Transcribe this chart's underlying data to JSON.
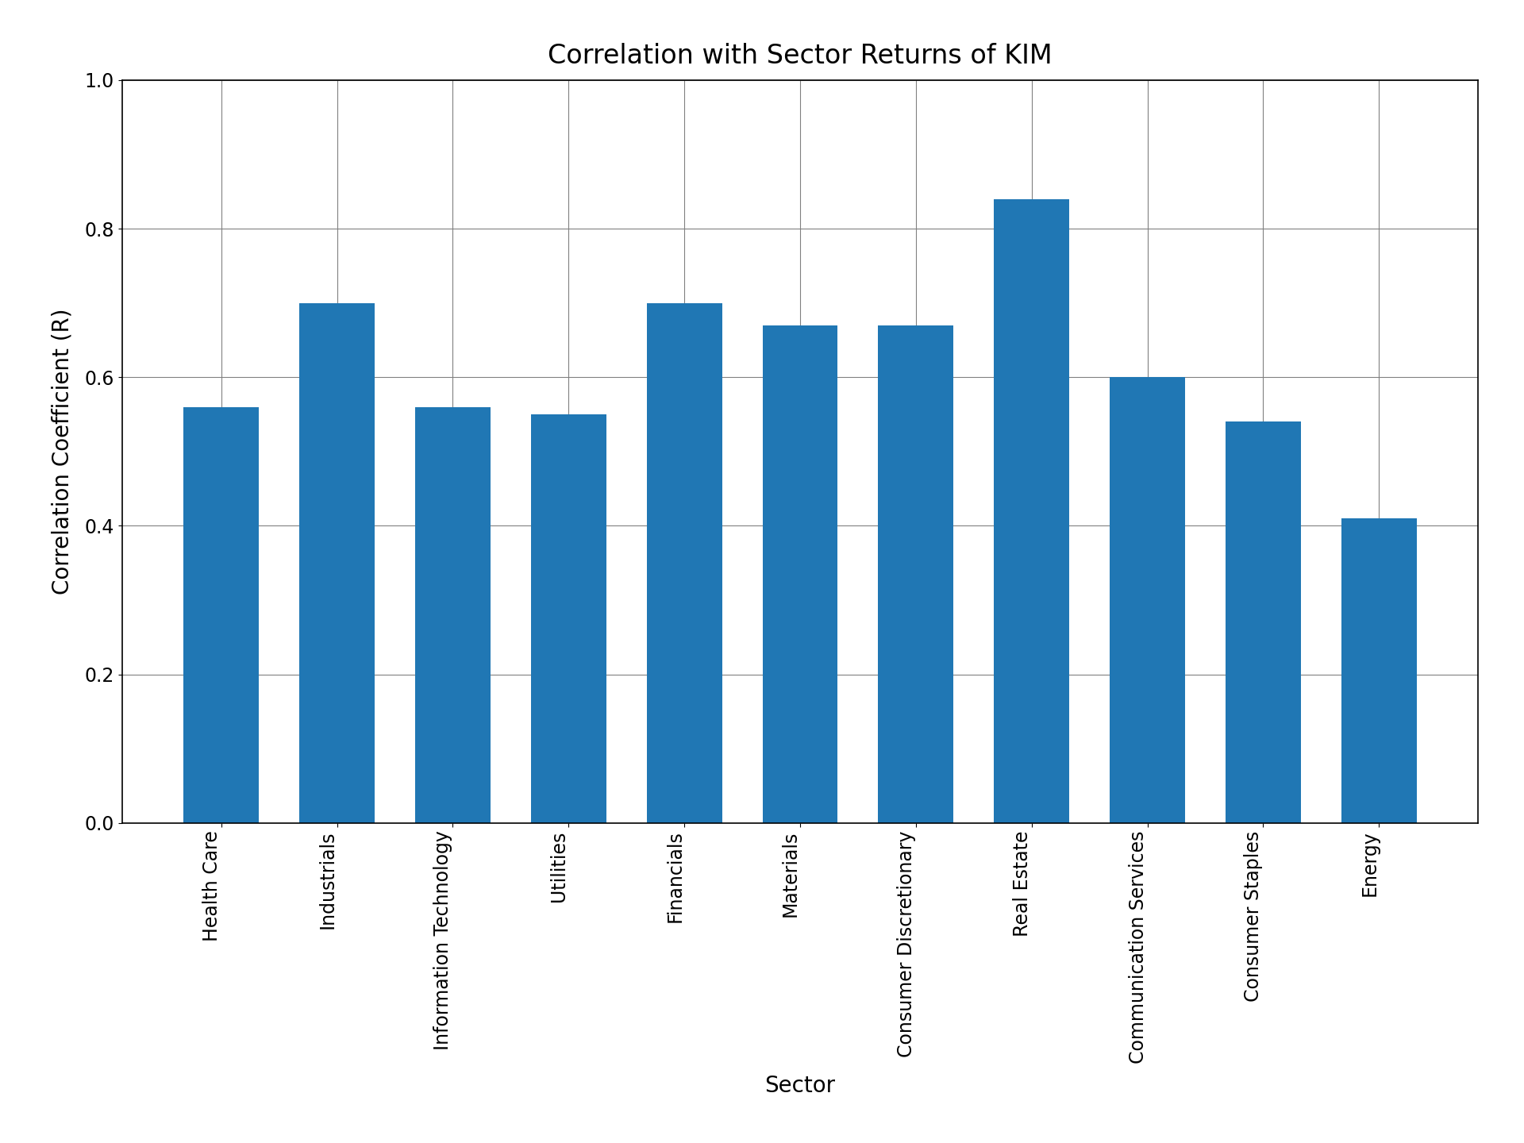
{
  "title": "Correlation with Sector Returns of KIM",
  "xlabel": "Sector",
  "ylabel": "Correlation Coefficient (R)",
  "categories": [
    "Health Care",
    "Industrials",
    "Information Technology",
    "Utilities",
    "Financials",
    "Materials",
    "Consumer Discretionary",
    "Real Estate",
    "Communication Services",
    "Consumer Staples",
    "Energy"
  ],
  "values": [
    0.56,
    0.7,
    0.56,
    0.55,
    0.7,
    0.67,
    0.67,
    0.84,
    0.6,
    0.54,
    0.41
  ],
  "bar_color": "#2077b4",
  "ylim": [
    0.0,
    1.0
  ],
  "yticks": [
    0.0,
    0.2,
    0.4,
    0.6,
    0.8,
    1.0
  ],
  "title_fontsize": 24,
  "label_fontsize": 20,
  "tick_fontsize": 17,
  "background_color": "#ffffff",
  "grid": true,
  "bar_width": 0.65,
  "rotation": 90
}
